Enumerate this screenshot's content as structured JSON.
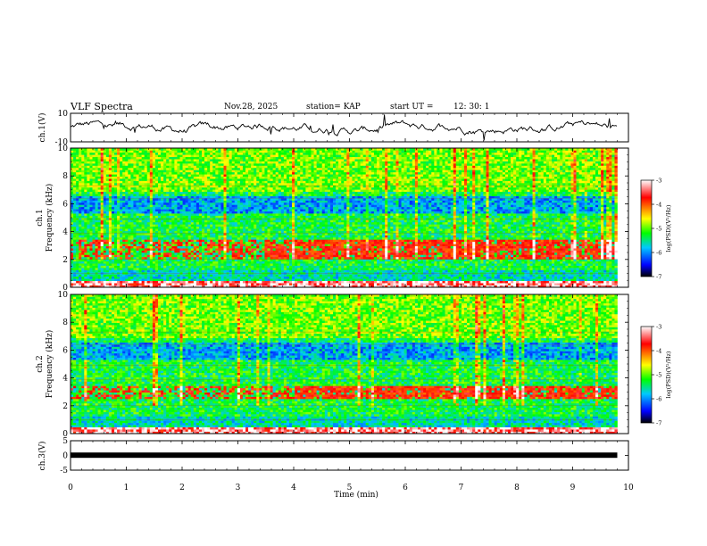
{
  "chart_data": {
    "type": "heatmap",
    "title": "VLF Spectra",
    "date": "Nov.28, 2025",
    "station": "station= KAP",
    "start_label": "start UT =",
    "start_time": "12: 30: 1",
    "xlabel": "Time (min)",
    "xlim": [
      0,
      10
    ],
    "x_ticks": [
      "0",
      "1",
      "2",
      "3",
      "4",
      "5",
      "6",
      "7",
      "8",
      "9",
      "10"
    ],
    "panels": [
      {
        "id": "ch1-waveform",
        "type": "line",
        "ylabel": "ch.1(V)",
        "ylim": [
          -10,
          10
        ],
        "y_ticks": [
          "10",
          "-10"
        ],
        "trace_end_min": 9.8
      },
      {
        "id": "ch1-spectrogram",
        "type": "heatmap",
        "ylabel": [
          "ch.1",
          "Frequency (kHz)"
        ],
        "ylim": [
          0,
          10
        ],
        "y_ticks": [
          "0",
          "2",
          "4",
          "6",
          "8",
          "10"
        ],
        "data_end_min": 9.8,
        "features": {
          "background_log_psd": -5.3,
          "band_2_3.5_kHz_log_psd": -3.7,
          "band_5.5_6.5_kHz_log_psd": -5.9,
          "band_onset_min": 3.5
        }
      },
      {
        "id": "ch2-spectrogram",
        "type": "heatmap",
        "ylabel": [
          "ch.2",
          "Frequency (kHz)"
        ],
        "ylim": [
          0,
          10
        ],
        "y_ticks": [
          "0",
          "2",
          "4",
          "6",
          "8",
          "10"
        ],
        "data_end_min": 9.8,
        "features": {
          "background_log_psd": -5.3,
          "band_2.5_3.5_kHz_log_psd": -3.7,
          "band_5.5_6.5_kHz_log_psd": -5.9,
          "band_onset_min": 4.0
        }
      },
      {
        "id": "ch3-waveform",
        "type": "line",
        "ylabel": "ch.3(V)",
        "ylim": [
          -5,
          5
        ],
        "y_ticks": [
          "5",
          "0",
          "-5"
        ],
        "trace_level_v": 0.1,
        "trace_end_min": 9.8
      }
    ],
    "colorbar": {
      "label": "log(PSD)(V²/Hz)",
      "range": [
        -7,
        -3
      ],
      "ticks": [
        "-3",
        "-4",
        "-5",
        "-6",
        "-7"
      ],
      "colors": [
        "#000000",
        "#0000ff",
        "#00c8ff",
        "#00ff00",
        "#ffff00",
        "#ff0000",
        "#ffffff"
      ]
    }
  }
}
